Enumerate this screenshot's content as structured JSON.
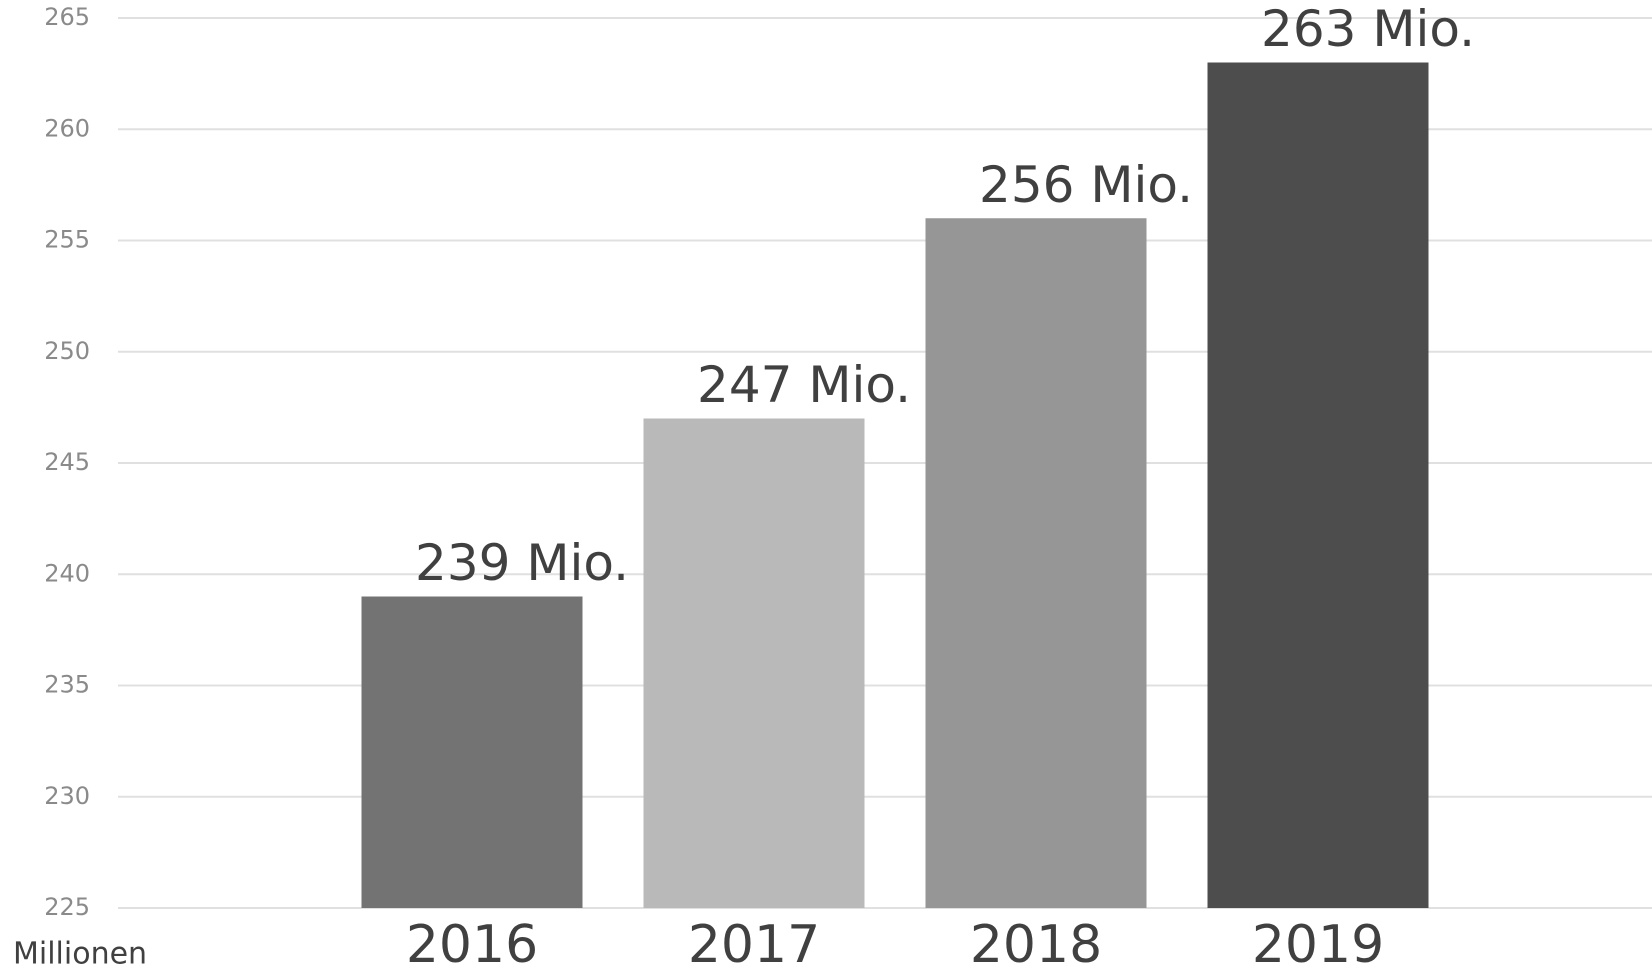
{
  "chart_data": {
    "type": "bar",
    "categories": [
      "2016",
      "2017",
      "2018",
      "2019"
    ],
    "values": [
      239,
      247,
      256,
      263
    ],
    "value_labels": [
      "239 Mio.",
      "247 Mio.",
      "256 Mio.",
      "263 Mio."
    ],
    "colors": [
      "#737373",
      "#b9b9b9",
      "#969696",
      "#4d4d4d"
    ],
    "y_axis_label": "Millionen",
    "ylim": [
      225,
      265
    ],
    "yticks": [
      225,
      230,
      235,
      240,
      245,
      250,
      255,
      260,
      265
    ],
    "grid": true
  }
}
